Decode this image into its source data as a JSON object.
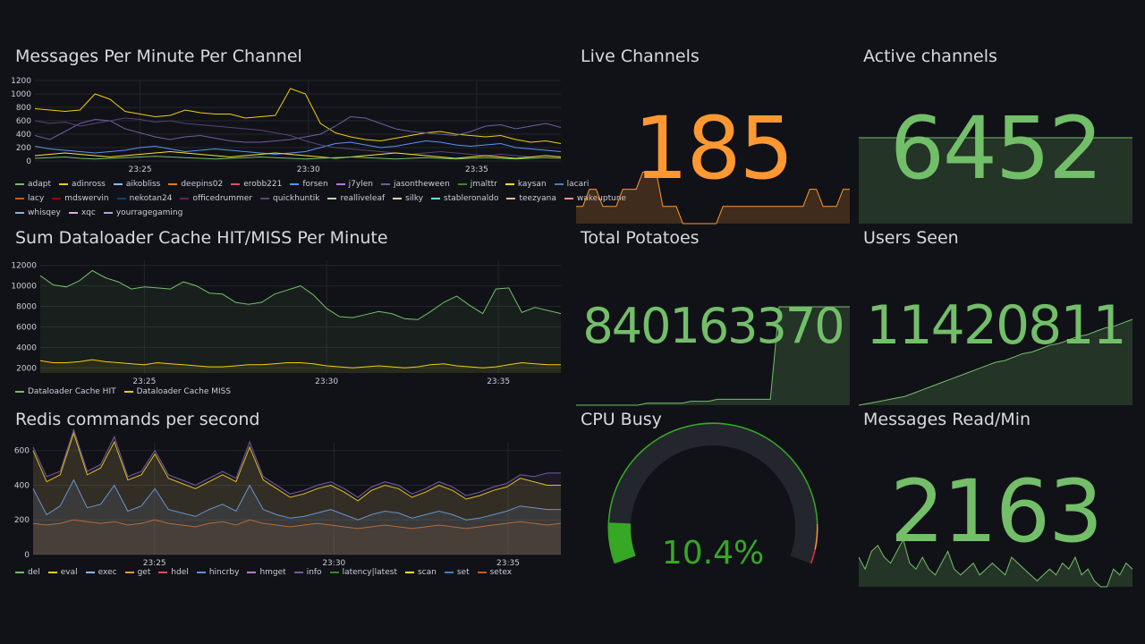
{
  "colors": {
    "background": "#111217",
    "green": "#73bf69",
    "orange": "#ff9830",
    "gauge_green": "#37a825",
    "gauge_orange": "#ff9830",
    "gauge_red": "#e02f44"
  },
  "panels": {
    "messages_per_minute": {
      "title": "Messages Per Minute Per Channel",
      "legend": [
        {
          "name": "adapt",
          "color": "#73bf69"
        },
        {
          "name": "adinross",
          "color": "#f2cc0c"
        },
        {
          "name": "aikobliss",
          "color": "#8ab8ff"
        },
        {
          "name": "deepins02",
          "color": "#ff780a"
        },
        {
          "name": "erobb221",
          "color": "#f2495c"
        },
        {
          "name": "forsen",
          "color": "#5794f2"
        },
        {
          "name": "j7ylen",
          "color": "#b877d9"
        },
        {
          "name": "jasontheween",
          "color": "#705da0"
        },
        {
          "name": "jmalttr",
          "color": "#37872d"
        },
        {
          "name": "kaysan",
          "color": "#fade2a"
        },
        {
          "name": "lacari",
          "color": "#447ebc"
        },
        {
          "name": "lacy",
          "color": "#c15c17"
        },
        {
          "name": "mdswervin",
          "color": "#890f02"
        },
        {
          "name": "nekotan24",
          "color": "#0a437c"
        },
        {
          "name": "officedrummer",
          "color": "#6d1f62"
        },
        {
          "name": "quickhuntik",
          "color": "#584477"
        },
        {
          "name": "realliveleaf",
          "color": "#b7dbab"
        },
        {
          "name": "silky",
          "color": "#f4d598"
        },
        {
          "name": "stableronaldo",
          "color": "#70dbed"
        },
        {
          "name": "teezyana",
          "color": "#f9ba8f"
        },
        {
          "name": "wakeuptune",
          "color": "#f29191"
        },
        {
          "name": "whisqey",
          "color": "#82b5d8"
        },
        {
          "name": "xqc",
          "color": "#e5a8e2"
        },
        {
          "name": "yourragegaming",
          "color": "#aea2e0"
        }
      ],
      "chart_data": {
        "type": "line",
        "title": "Messages Per Minute Per Channel",
        "yticks": [
          "0",
          "200",
          "400",
          "600",
          "800",
          "1000",
          "1200"
        ],
        "ylim": [
          0,
          1200
        ],
        "xticks": [
          "23:25",
          "23:30",
          "23:35"
        ],
        "series": [
          {
            "name": "adinross",
            "color": "#f2cc0c",
            "values": [
              780,
              760,
              740,
              760,
              1000,
              920,
              740,
              700,
              660,
              680,
              760,
              720,
              700,
              700,
              640,
              660,
              680,
              1080,
              1000,
              560,
              420,
              360,
              320,
              300,
              340,
              380,
              420,
              440,
              400,
              380,
              360,
              380,
              320,
              280,
              300,
              260
            ]
          },
          {
            "name": "jasontheween",
            "color": "#705da0",
            "values": [
              380,
              320,
              440,
              560,
              620,
              600,
              480,
              420,
              360,
              320,
              360,
              380,
              340,
              300,
              280,
              280,
              300,
              320,
              360,
              400,
              520,
              660,
              640,
              560,
              480,
              440,
              420,
              400,
              380,
              440,
              520,
              540,
              480,
              520,
              560,
              500
            ]
          },
          {
            "name": "forsen",
            "color": "#5794f2",
            "values": [
              220,
              180,
              160,
              140,
              120,
              140,
              160,
              200,
              220,
              180,
              140,
              160,
              180,
              160,
              140,
              120,
              100,
              120,
              140,
              200,
              260,
              280,
              240,
              200,
              220,
              260,
              300,
              280,
              240,
              220,
              240,
              260,
              200,
              180,
              160,
              140
            ]
          },
          {
            "name": "quickhuntik",
            "color": "#584477",
            "values": [
              600,
              560,
              580,
              520,
              560,
              600,
              640,
              620,
              580,
              600,
              560,
              540,
              520,
              500,
              480,
              460,
              420,
              380,
              300,
              240,
              200,
              180,
              160,
              140,
              120,
              100,
              120,
              140,
              120,
              100,
              80,
              100,
              80,
              60,
              80,
              60
            ]
          },
          {
            "name": "kaysan",
            "color": "#fade2a",
            "values": [
              80,
              100,
              120,
              100,
              80,
              60,
              80,
              100,
              120,
              140,
              120,
              100,
              80,
              60,
              80,
              100,
              120,
              100,
              80,
              60,
              40,
              60,
              80,
              100,
              120,
              100,
              80,
              60,
              40,
              60,
              80,
              60,
              40,
              60,
              80,
              60
            ]
          },
          {
            "name": "adapt",
            "color": "#73bf69",
            "values": [
              40,
              50,
              60,
              40,
              30,
              40,
              50,
              60,
              70,
              60,
              50,
              40,
              30,
              40,
              50,
              60,
              50,
              40,
              30,
              40,
              50,
              60,
              50,
              40,
              30,
              40,
              50,
              40,
              30,
              40,
              50,
              40,
              30,
              40,
              50,
              40
            ]
          }
        ]
      }
    },
    "live_channels": {
      "title": "Live Channels",
      "value": "185",
      "color": "#ff9830",
      "sparkline": [
        20,
        20,
        40,
        40,
        20,
        20,
        20,
        40,
        40,
        40,
        60,
        60,
        60,
        20,
        20,
        20,
        0,
        0,
        0,
        0,
        0,
        0,
        20,
        20,
        20,
        20,
        20,
        20,
        20,
        20,
        20,
        20,
        20,
        20,
        20,
        40,
        40,
        20,
        20,
        20,
        40,
        40
      ]
    },
    "active_channels": {
      "title": "Active channels",
      "value": "6452",
      "color": "#73bf69",
      "sparkline": [
        100,
        100,
        100,
        100,
        100,
        100,
        100,
        100,
        100,
        100
      ]
    },
    "cache_hit_miss": {
      "title": "Sum Dataloader Cache HIT/MISS Per Minute",
      "legend": [
        {
          "name": "Dataloader Cache HIT",
          "color": "#73bf69"
        },
        {
          "name": "Dataloader Cache MISS",
          "color": "#f2cc0c"
        }
      ],
      "chart_data": {
        "type": "line",
        "yticks": [
          "2000",
          "4000",
          "6000",
          "8000",
          "10000",
          "12000"
        ],
        "ylim": [
          1500,
          12500
        ],
        "xticks": [
          "23:25",
          "23:30",
          "23:35"
        ],
        "series": [
          {
            "name": "Dataloader Cache HIT",
            "color": "#73bf69",
            "values": [
              11000,
              10100,
              9900,
              10500,
              11500,
              10800,
              10400,
              9700,
              9900,
              9800,
              9700,
              10400,
              10000,
              9300,
              9200,
              8400,
              8200,
              8400,
              9200,
              9600,
              10000,
              9100,
              7800,
              7000,
              6900,
              7200,
              7500,
              7300,
              6800,
              6700,
              7500,
              8400,
              9000,
              8100,
              7300,
              9700,
              9800,
              7400,
              7900,
              7600,
              7300
            ]
          },
          {
            "name": "Dataloader Cache MISS",
            "color": "#f2cc0c",
            "values": [
              2700,
              2500,
              2500,
              2600,
              2800,
              2600,
              2500,
              2400,
              2300,
              2500,
              2400,
              2300,
              2200,
              2100,
              2100,
              2200,
              2300,
              2300,
              2400,
              2500,
              2500,
              2400,
              2200,
              2100,
              2000,
              2100,
              2200,
              2100,
              2000,
              2100,
              2300,
              2400,
              2200,
              2100,
              2000,
              2100,
              2300,
              2500,
              2400,
              2300,
              2300
            ]
          }
        ]
      }
    },
    "total_potatoes": {
      "title": "Total Potatoes",
      "value": "840163370",
      "color": "#73bf69",
      "sparkline": [
        0,
        0,
        0,
        0,
        0,
        0,
        0,
        0,
        2,
        2,
        2,
        2,
        2,
        4,
        4,
        4,
        6,
        6,
        6,
        6,
        6,
        6,
        6,
        100,
        100,
        100,
        100,
        100,
        100,
        100,
        100,
        100
      ]
    },
    "users_seen": {
      "title": "Users Seen",
      "value": "11420811",
      "color": "#73bf69",
      "sparkline": [
        0,
        2,
        4,
        6,
        8,
        10,
        14,
        18,
        22,
        26,
        30,
        34,
        38,
        42,
        46,
        50,
        52,
        56,
        60,
        62,
        66,
        70,
        72,
        76,
        80,
        82,
        86,
        90,
        92,
        96,
        100
      ]
    },
    "redis": {
      "title": "Redis commands per second",
      "legend": [
        {
          "name": "del",
          "color": "#73bf69"
        },
        {
          "name": "eval",
          "color": "#f2cc0c"
        },
        {
          "name": "exec",
          "color": "#8ab8ff"
        },
        {
          "name": "get",
          "color": "#ff9830"
        },
        {
          "name": "hdel",
          "color": "#f2495c"
        },
        {
          "name": "hincrby",
          "color": "#5794f2"
        },
        {
          "name": "hmget",
          "color": "#b877d9"
        },
        {
          "name": "info",
          "color": "#705da0"
        },
        {
          "name": "latency|latest",
          "color": "#37872d"
        },
        {
          "name": "scan",
          "color": "#fade2a"
        },
        {
          "name": "set",
          "color": "#447ebc"
        },
        {
          "name": "setex",
          "color": "#c15c17"
        }
      ],
      "chart_data": {
        "type": "area",
        "yticks": [
          "0",
          "200",
          "400",
          "600"
        ],
        "ylim": [
          0,
          650
        ],
        "xticks": [
          "23:25",
          "23:30",
          "23:35"
        ],
        "series": [
          {
            "name": "setex",
            "color": "#c15c17",
            "values": [
              180,
              170,
              180,
              200,
              190,
              180,
              190,
              170,
              180,
              200,
              180,
              170,
              160,
              180,
              190,
              170,
              200,
              180,
              170,
              160,
              170,
              180,
              170,
              160,
              150,
              160,
              170,
              160,
              150,
              160,
              170,
              160,
              150,
              160,
              170,
              180,
              190,
              180,
              170,
              180
            ]
          },
          {
            "name": "hincrby",
            "color": "#5794f2",
            "values": [
              380,
              230,
              280,
              430,
              270,
              290,
              400,
              250,
              280,
              380,
              260,
              240,
              220,
              260,
              290,
              250,
              400,
              260,
              230,
              210,
              220,
              240,
              260,
              230,
              200,
              230,
              250,
              240,
              210,
              230,
              250,
              230,
              200,
              210,
              230,
              250,
              280,
              270,
              260,
              260
            ]
          },
          {
            "name": "eval",
            "color": "#f2cc0c",
            "values": [
              600,
              420,
              460,
              700,
              460,
              500,
              650,
              430,
              460,
              580,
              440,
              410,
              380,
              420,
              460,
              420,
              620,
              430,
              380,
              330,
              350,
              380,
              400,
              360,
              310,
              370,
              400,
              380,
              330,
              360,
              400,
              370,
              320,
              340,
              370,
              390,
              440,
              420,
              400,
              400
            ]
          },
          {
            "name": "info",
            "color": "#705da0",
            "values": [
              620,
              450,
              480,
              720,
              480,
              520,
              680,
              450,
              480,
              600,
              460,
              430,
              400,
              440,
              480,
              440,
              650,
              450,
              400,
              350,
              370,
              400,
              420,
              380,
              330,
              390,
              420,
              400,
              350,
              380,
              420,
              390,
              340,
              360,
              390,
              410,
              460,
              450,
              470,
              470
            ]
          }
        ]
      }
    },
    "cpu_busy": {
      "title": "CPU Busy",
      "value": "10.4%",
      "percent": 10.4,
      "color": "#37a825"
    },
    "messages_read": {
      "title": "Messages Read/Min",
      "value": "2163",
      "color": "#73bf69",
      "sparkline": [
        50,
        30,
        60,
        70,
        50,
        40,
        60,
        80,
        40,
        30,
        50,
        30,
        20,
        40,
        60,
        30,
        20,
        30,
        40,
        20,
        30,
        40,
        30,
        20,
        50,
        40,
        30,
        20,
        10,
        20,
        30,
        20,
        40,
        30,
        50,
        20,
        30,
        10,
        0,
        0,
        30,
        20,
        40,
        30
      ]
    }
  }
}
